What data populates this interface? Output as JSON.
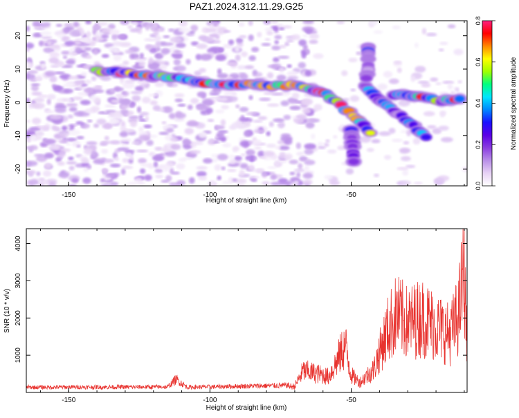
{
  "title": "PAZ1.2024.312.11.29.G25",
  "colors": {
    "colorbar": [
      "#ffffff",
      "#e7d2f5",
      "#b98fe8",
      "#8a3de0",
      "#5a00e6",
      "#1a10ff",
      "#0088ff",
      "#00e5ff",
      "#00ff80",
      "#a0ff00",
      "#ffff00",
      "#ff8800",
      "#ff0000",
      "#ff2080"
    ],
    "snr_line": "#e8332f"
  },
  "chart_data": [
    {
      "type": "heatmap",
      "title": "PAZ1.2024.312.11.29.G25",
      "xlabel": "Height of straight line (km)",
      "ylabel": "Frequency (Hz)",
      "xlim": [
        -165,
        -9
      ],
      "ylim": [
        -25,
        24.5
      ],
      "x_ticks": [
        "-150",
        "-100",
        "-50"
      ],
      "y_ticks": [
        "20",
        "10",
        "0",
        "-10",
        "-20"
      ],
      "colorbar": {
        "label": "Normalized spectral amplitude",
        "range": [
          0,
          0.8
        ],
        "ticks": [
          "0.8",
          "0.6",
          "0.4",
          "0.2",
          "0.0"
        ]
      },
      "ridges": [
        {
          "points": [
            [
              -140,
              9.5
            ],
            [
              -125,
              8.5
            ],
            [
              -110,
              7
            ],
            [
              -100,
              5.5
            ],
            [
              -88,
              5.5
            ],
            [
              -78,
              5
            ],
            [
              -68,
              5
            ],
            [
              -60,
              3
            ],
            [
              -55,
              0
            ],
            [
              -48,
              -5
            ],
            [
              -42,
              -10
            ]
          ],
          "peak": 0.8
        },
        {
          "points": [
            [
              -45,
              5
            ],
            [
              -40,
              1
            ],
            [
              -35,
              -2.5
            ],
            [
              -28,
              -7
            ],
            [
              -22,
              -11
            ]
          ],
          "peak": 0.45
        },
        {
          "points": [
            [
              -35,
              2.5
            ],
            [
              -25,
              2
            ],
            [
              -18,
              0.5
            ],
            [
              -10,
              1
            ]
          ],
          "peak": 0.8
        },
        {
          "points": [
            [
              -44,
              17
            ],
            [
              -44,
              10
            ],
            [
              -45,
              6
            ]
          ],
          "peak": 0.35
        },
        {
          "points": [
            [
              -50,
              -8
            ],
            [
              -49,
              -19
            ]
          ],
          "peak": 0.3
        }
      ],
      "grid": false
    },
    {
      "type": "line",
      "xlabel": "Height of straight line (km)",
      "ylabel": "SNR (10 * v/v)",
      "xlim": [
        -165,
        -9
      ],
      "ylim": [
        0,
        4400
      ],
      "x_ticks": [
        "-150",
        "-100",
        "-50"
      ],
      "y_ticks": [
        "4000",
        "3000",
        "2000",
        "1000"
      ],
      "envelope": {
        "x": [
          -165,
          -115,
          -112,
          -108,
          -70,
          -67,
          -62,
          -58,
          -56,
          -53,
          -52,
          -50,
          -47,
          -42,
          -40,
          -37,
          -34,
          -30,
          -25,
          -20,
          -15,
          -12,
          -10,
          -9
        ],
        "y": [
          150,
          160,
          380,
          150,
          210,
          750,
          650,
          550,
          900,
          1500,
          1600,
          600,
          350,
          800,
          1400,
          2200,
          2700,
          2400,
          2600,
          2300,
          2000,
          2700,
          4400,
          1300
        ]
      },
      "grid": false
    }
  ]
}
